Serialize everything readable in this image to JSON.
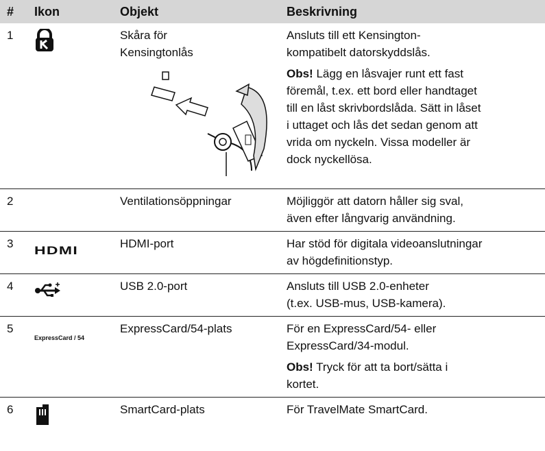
{
  "table": {
    "headers": [
      "#",
      "Ikon",
      "Objekt",
      "Beskrivning"
    ],
    "rows": [
      {
        "number": "1",
        "item": [
          "Skåra för",
          "Kensingtonlås"
        ],
        "description": [
          {
            "lines": [
              "Ansluts till ett Kensington-",
              "kompatibelt datorskyddslås."
            ]
          },
          {
            "label": "Obs!",
            "lines": [
              "Lägg en låsvajer runt ett fast",
              "föremål, t.ex. ett bord eller handtaget",
              "till en låst skrivbordslåda. Sätt in låset",
              "i uttaget och lås det sedan genom att",
              "vrida om nyckeln. Vissa modeller är",
              "dock nyckellösa."
            ]
          }
        ]
      },
      {
        "number": "2",
        "item": [
          "Ventilationsöppningar"
        ],
        "description": [
          {
            "lines": [
              "Möjliggör att datorn håller sig sval,",
              "även efter långvarig användning."
            ]
          }
        ]
      },
      {
        "number": "3",
        "icon_text": "HDMI",
        "item": [
          "HDMI-port"
        ],
        "description": [
          {
            "lines": [
              "Har stöd för digitala videoanslutningar",
              "av högdefinitionstyp."
            ]
          }
        ]
      },
      {
        "number": "4",
        "item": [
          "USB 2.0-port"
        ],
        "description": [
          {
            "lines": [
              "Ansluts till USB 2.0-enheter",
              "(t.ex. USB-mus, USB-kamera)."
            ]
          }
        ]
      },
      {
        "number": "5",
        "icon_text": "ExpressCard / 54",
        "item": [
          "ExpressCard/54-plats"
        ],
        "description": [
          {
            "lines": [
              "För en ExpressCard/54- eller",
              "ExpressCard/34-modul."
            ]
          },
          {
            "label": "Obs!",
            "lines": [
              "Tryck för att ta bort/sätta i",
              "kortet."
            ]
          }
        ]
      },
      {
        "number": "6",
        "item": [
          "SmartCard-plats"
        ],
        "description": [
          {
            "lines": [
              "För TravelMate SmartCard."
            ]
          }
        ]
      }
    ]
  }
}
